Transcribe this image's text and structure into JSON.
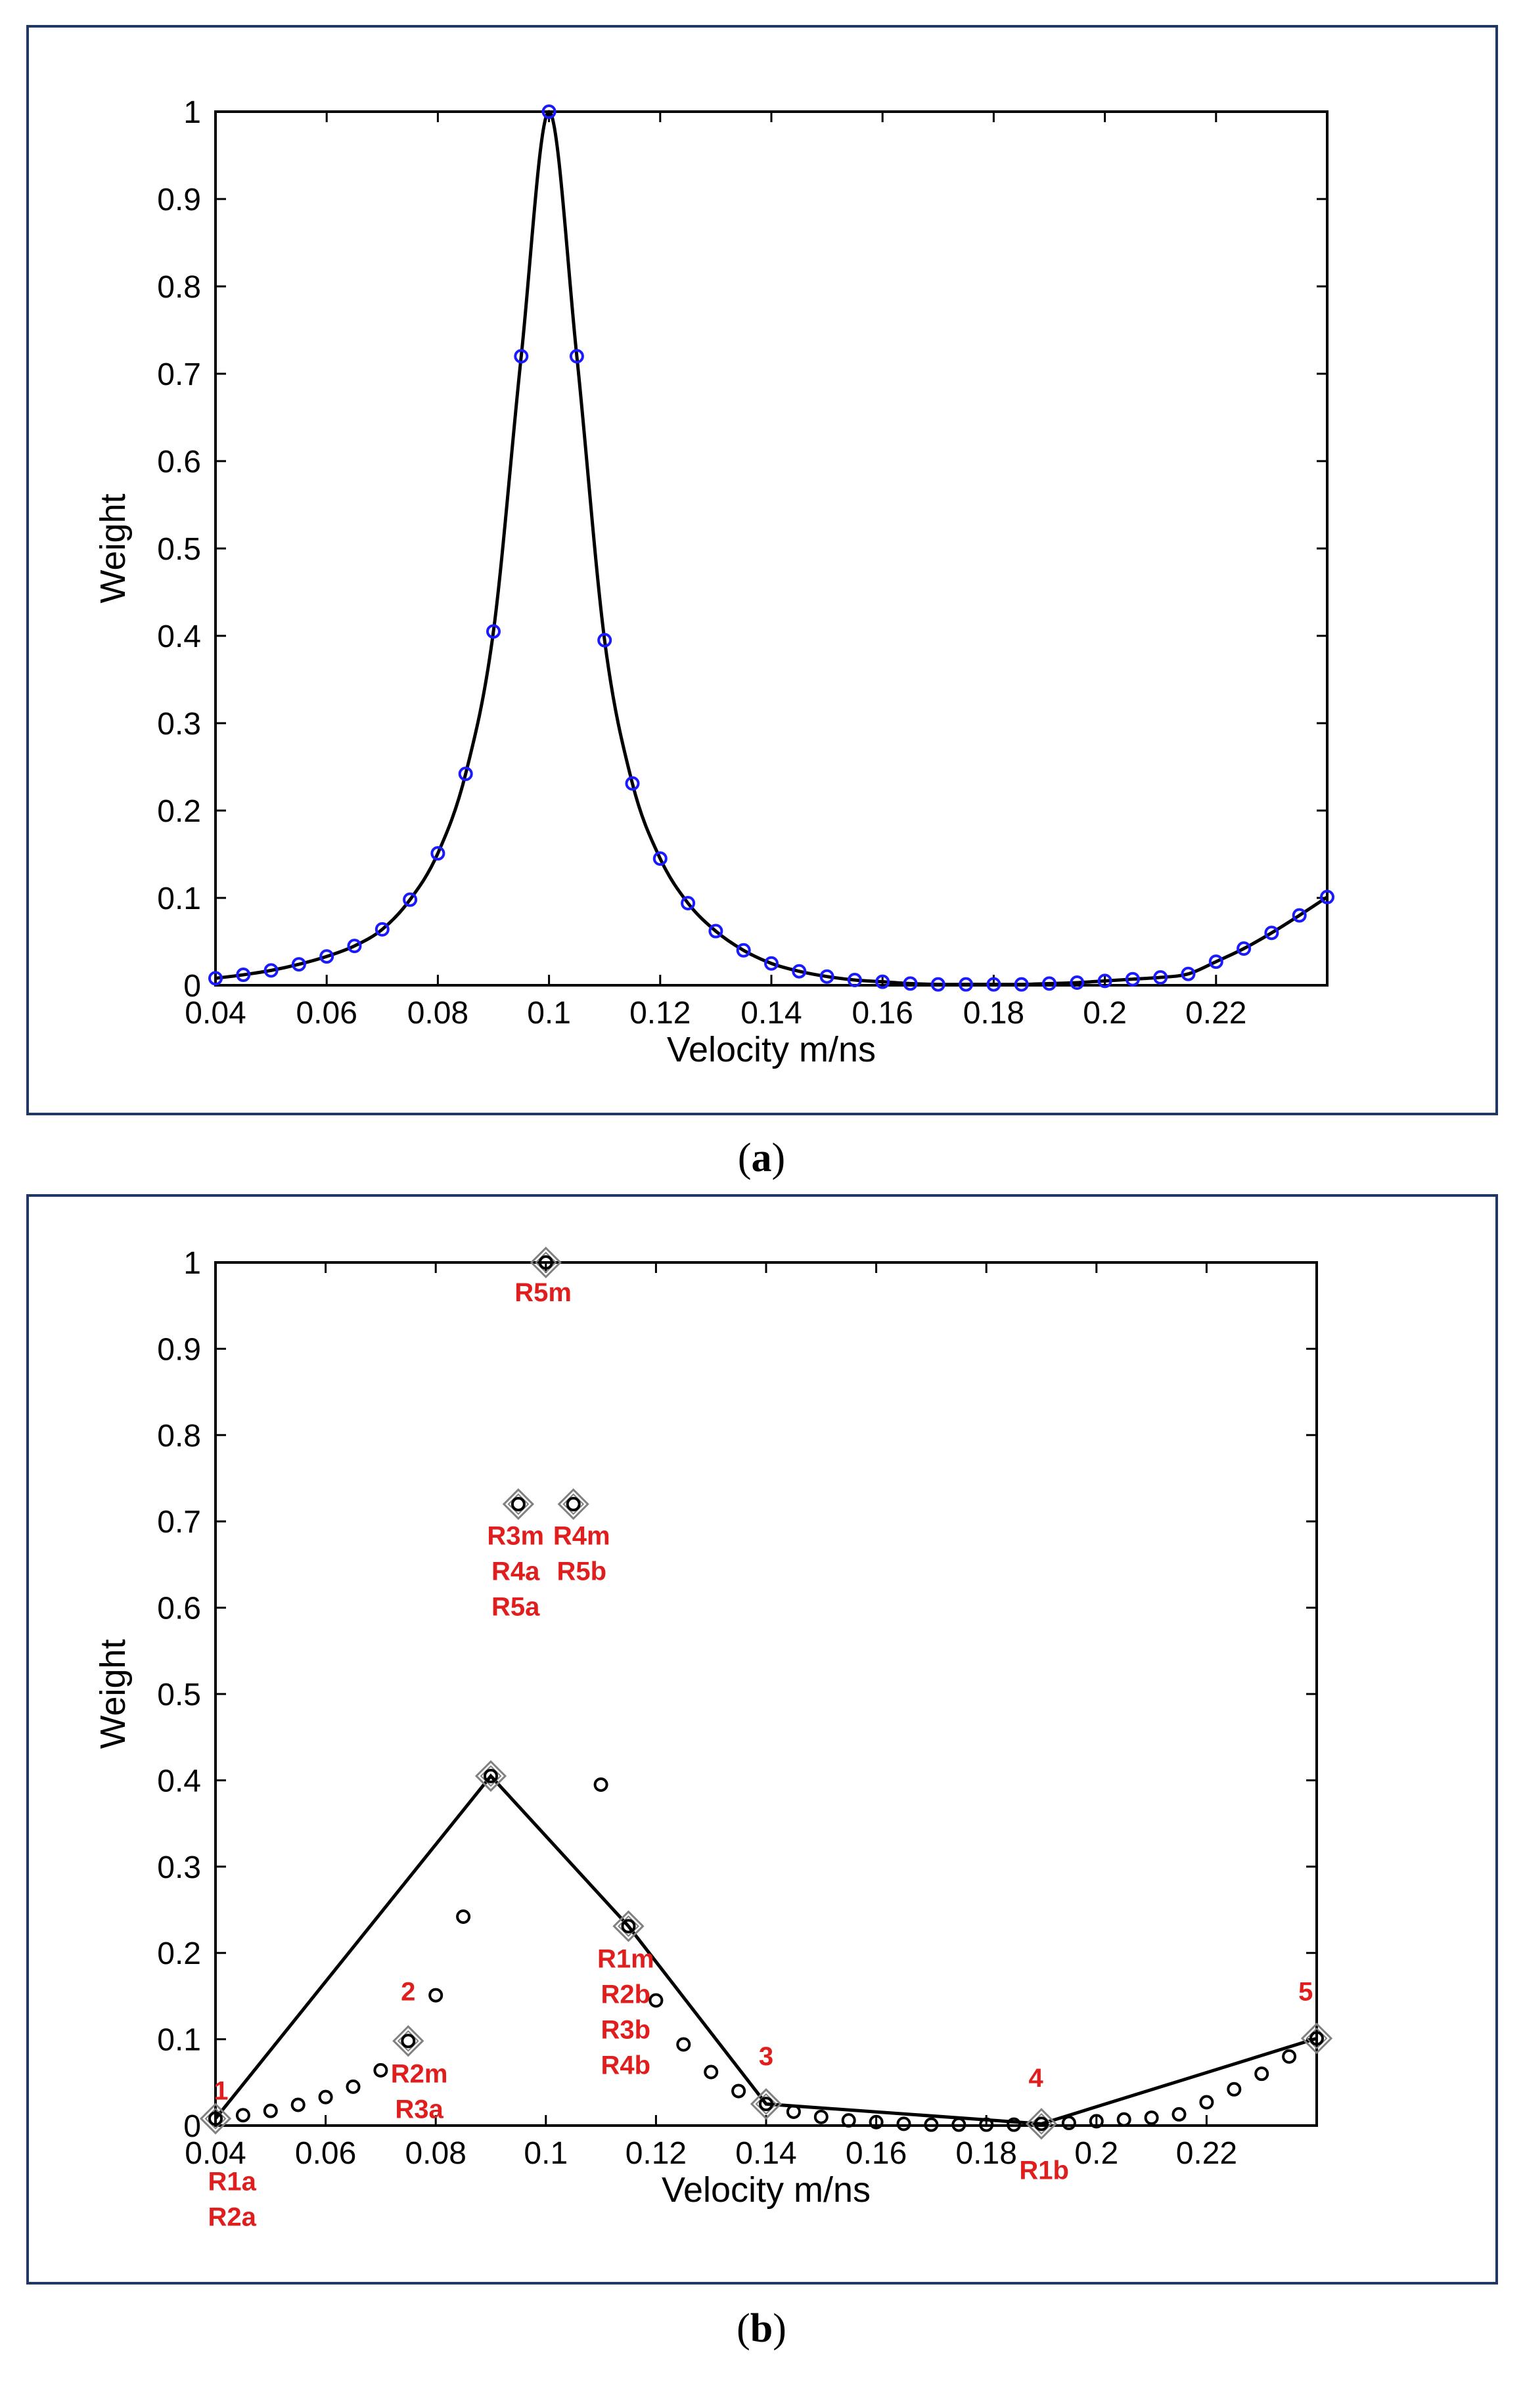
{
  "chart_data": [
    {
      "panel": "a",
      "type": "line",
      "caption_open": "(",
      "caption_letter": "a",
      "caption_close": ")",
      "xlabel": "Velocity m/ns",
      "ylabel": "Weight",
      "xlim": [
        0.04,
        0.24
      ],
      "ylim": [
        0,
        1
      ],
      "xticks": [
        0.04,
        0.06,
        0.08,
        0.1,
        0.12,
        0.14,
        0.16,
        0.18,
        0.2,
        0.22
      ],
      "xtick_labels": [
        "0.04",
        "0.06",
        "0.08",
        "0.1",
        "0.12",
        "0.14",
        "0.16",
        "0.18",
        "0.2",
        "0.22"
      ],
      "yticks": [
        0,
        0.1,
        0.2,
        0.3,
        0.4,
        0.5,
        0.6,
        0.7,
        0.8,
        0.9,
        1
      ],
      "ytick_labels": [
        "0",
        "0.1",
        "0.2",
        "0.3",
        "0.4",
        "0.5",
        "0.6",
        "0.7",
        "0.8",
        "0.9",
        "1"
      ],
      "line_color": "#000000",
      "marker_color": "#1a1aff",
      "points": {
        "x": [
          0.04,
          0.045,
          0.05,
          0.055,
          0.06,
          0.065,
          0.07,
          0.075,
          0.08,
          0.085,
          0.09,
          0.095,
          0.1,
          0.105,
          0.11,
          0.115,
          0.12,
          0.125,
          0.13,
          0.135,
          0.14,
          0.145,
          0.15,
          0.155,
          0.16,
          0.165,
          0.17,
          0.175,
          0.18,
          0.185,
          0.19,
          0.195,
          0.2,
          0.205,
          0.21,
          0.215,
          0.22,
          0.225,
          0.23,
          0.235,
          0.24
        ],
        "y": [
          0.008,
          0.012,
          0.017,
          0.024,
          0.033,
          0.045,
          0.064,
          0.098,
          0.151,
          0.242,
          0.405,
          0.72,
          1.0,
          0.72,
          0.395,
          0.231,
          0.145,
          0.094,
          0.062,
          0.04,
          0.025,
          0.016,
          0.01,
          0.006,
          0.004,
          0.002,
          0.001,
          0.001,
          0.001,
          0.001,
          0.002,
          0.003,
          0.005,
          0.007,
          0.009,
          0.013,
          0.027,
          0.042,
          0.06,
          0.08,
          0.101
        ]
      }
    },
    {
      "panel": "b",
      "type": "scatter",
      "caption_open": "(",
      "caption_letter": "b",
      "caption_close": ")",
      "xlabel": "Velocity m/ns",
      "ylabel": "Weight",
      "xlim": [
        0.04,
        0.24
      ],
      "ylim": [
        0,
        1
      ],
      "xticks": [
        0.04,
        0.06,
        0.08,
        0.1,
        0.12,
        0.14,
        0.16,
        0.18,
        0.2,
        0.22
      ],
      "xtick_labels": [
        "0.04",
        "0.06",
        "0.08",
        "0.1",
        "0.12",
        "0.14",
        "0.16",
        "0.18",
        "0.2",
        "0.22"
      ],
      "yticks": [
        0,
        0.1,
        0.2,
        0.3,
        0.4,
        0.5,
        0.6,
        0.7,
        0.8,
        0.9,
        1
      ],
      "ytick_labels": [
        "0",
        "0.1",
        "0.2",
        "0.3",
        "0.4",
        "0.5",
        "0.6",
        "0.7",
        "0.8",
        "0.9",
        "1"
      ],
      "marker_color": "#000000",
      "diamond_color": "#808080",
      "annotation_color": "#e01e1e",
      "points": {
        "x": [
          0.04,
          0.045,
          0.05,
          0.055,
          0.06,
          0.065,
          0.07,
          0.075,
          0.08,
          0.085,
          0.09,
          0.095,
          0.1,
          0.105,
          0.11,
          0.115,
          0.12,
          0.125,
          0.13,
          0.135,
          0.14,
          0.145,
          0.15,
          0.155,
          0.16,
          0.165,
          0.17,
          0.175,
          0.18,
          0.185,
          0.19,
          0.195,
          0.2,
          0.205,
          0.21,
          0.215,
          0.22,
          0.225,
          0.23,
          0.235,
          0.24
        ],
        "y": [
          0.008,
          0.012,
          0.017,
          0.024,
          0.033,
          0.045,
          0.064,
          0.098,
          0.151,
          0.242,
          0.405,
          0.72,
          1.0,
          0.72,
          0.395,
          0.231,
          0.145,
          0.094,
          0.062,
          0.04,
          0.025,
          0.016,
          0.01,
          0.006,
          0.004,
          0.002,
          0.001,
          0.001,
          0.001,
          0.001,
          0.002,
          0.003,
          0.005,
          0.007,
          0.009,
          0.013,
          0.027,
          0.042,
          0.06,
          0.08,
          0.101
        ]
      },
      "highlighted": [
        {
          "x": 0.04,
          "y": 0.008
        },
        {
          "x": 0.075,
          "y": 0.098
        },
        {
          "x": 0.09,
          "y": 0.405
        },
        {
          "x": 0.095,
          "y": 0.72
        },
        {
          "x": 0.1,
          "y": 1.0
        },
        {
          "x": 0.105,
          "y": 0.72
        },
        {
          "x": 0.115,
          "y": 0.231
        },
        {
          "x": 0.14,
          "y": 0.025
        },
        {
          "x": 0.19,
          "y": 0.002
        },
        {
          "x": 0.24,
          "y": 0.101
        }
      ],
      "polyline": {
        "x": [
          0.04,
          0.09,
          0.115,
          0.14,
          0.19,
          0.24
        ],
        "y": [
          0.008,
          0.405,
          0.231,
          0.025,
          0.002,
          0.101
        ]
      },
      "numbered_points": [
        {
          "label": "1",
          "x": 0.041,
          "y": 0.03
        },
        {
          "label": "2",
          "x": 0.075,
          "y": 0.145
        },
        {
          "label": "3",
          "x": 0.14,
          "y": 0.07
        },
        {
          "label": "4",
          "x": 0.189,
          "y": 0.045
        },
        {
          "label": "5",
          "x": 0.238,
          "y": 0.145
        }
      ],
      "annotations": [
        {
          "x": 0.043,
          "y": -0.075,
          "lines": [
            "R1a",
            "R2a"
          ]
        },
        {
          "x": 0.077,
          "y": 0.05,
          "lines": [
            "R2m",
            "R3a"
          ]
        },
        {
          "x": 0.0995,
          "y": 0.955,
          "lines": [
            "R5m"
          ]
        },
        {
          "x": 0.0945,
          "y": 0.673,
          "lines": [
            "R3m",
            "R4a",
            "R5a"
          ]
        },
        {
          "x": 0.1065,
          "y": 0.673,
          "lines": [
            "R4m",
            "R5b"
          ]
        },
        {
          "x": 0.1145,
          "y": 0.183,
          "lines": [
            "R1m",
            "R2b",
            "R3b",
            "R4b"
          ]
        },
        {
          "x": 0.1905,
          "y": -0.062,
          "lines": [
            "R1b"
          ]
        }
      ]
    }
  ]
}
